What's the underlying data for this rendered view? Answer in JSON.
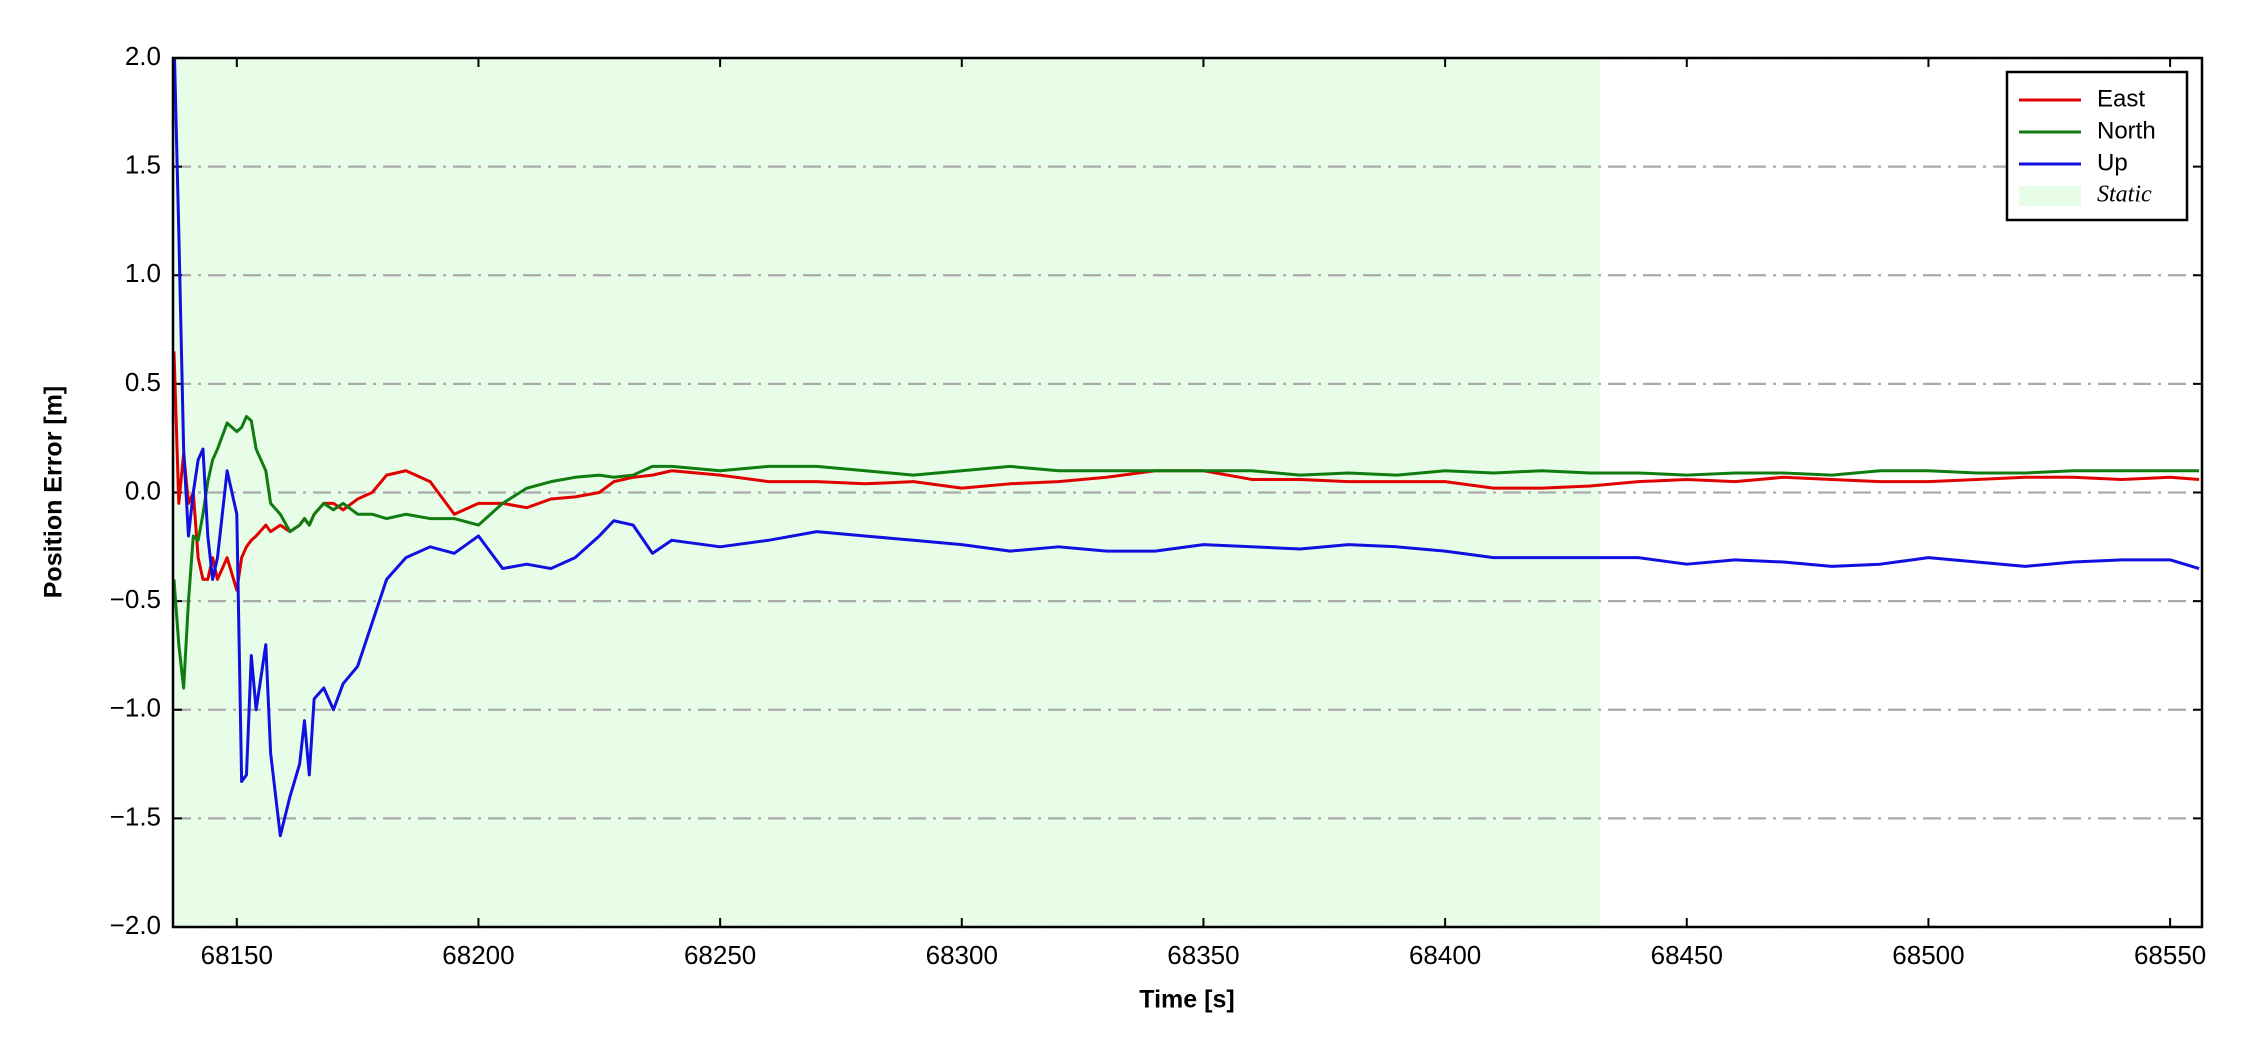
{
  "chart_data": {
    "type": "line",
    "xlabel": "Time [s]",
    "ylabel": "Position Error [m]",
    "xlim": [
      68136.8,
      68556.6
    ],
    "ylim": [
      -2.0,
      2.0
    ],
    "xticks": [
      68150,
      68200,
      68250,
      68300,
      68350,
      68400,
      68450,
      68500,
      68550
    ],
    "yticks": [
      {
        "value": -2.0,
        "label": "−2.0"
      },
      {
        "value": -1.5,
        "label": "−1.5"
      },
      {
        "value": -1.0,
        "label": "−1.0"
      },
      {
        "value": -0.5,
        "label": "−0.5"
      },
      {
        "value": 0.0,
        "label": "0.0"
      },
      {
        "value": 0.5,
        "label": "0.5"
      },
      {
        "value": 1.0,
        "label": "1.0"
      },
      {
        "value": 1.5,
        "label": "1.5"
      },
      {
        "value": 2.0,
        "label": "2.0"
      }
    ],
    "grid": true,
    "legend": "upper right",
    "shaded_region": {
      "name": "Static",
      "x": [
        68136.8,
        68432
      ],
      "color": "#e8fde8"
    },
    "x": [
      68137,
      68138,
      68139,
      68140,
      68141,
      68142,
      68143,
      68144,
      68145,
      68146,
      68148,
      68150,
      68151,
      68152,
      68153,
      68154,
      68156,
      68157,
      68159,
      68161,
      68163,
      68164,
      68165,
      68166,
      68168,
      68170,
      68172,
      68175,
      68178,
      68181,
      68185,
      68190,
      68195,
      68200,
      68205,
      68210,
      68215,
      68220,
      68225,
      68228,
      68232,
      68236,
      68240,
      68250,
      68260,
      68270,
      68280,
      68290,
      68300,
      68310,
      68320,
      68330,
      68340,
      68350,
      68360,
      68370,
      68380,
      68390,
      68400,
      68410,
      68420,
      68430,
      68440,
      68450,
      68460,
      68470,
      68480,
      68490,
      68500,
      68510,
      68520,
      68530,
      68540,
      68550,
      68556
    ],
    "series": [
      {
        "name": "East",
        "color": "#e00000",
        "values": [
          0.65,
          -0.05,
          0.18,
          -0.05,
          0.0,
          -0.3,
          -0.4,
          -0.4,
          -0.3,
          -0.4,
          -0.3,
          -0.45,
          -0.3,
          -0.25,
          -0.22,
          -0.2,
          -0.15,
          -0.18,
          -0.15,
          -0.18,
          -0.15,
          -0.12,
          -0.15,
          -0.1,
          -0.05,
          -0.05,
          -0.08,
          -0.03,
          0.0,
          0.08,
          0.1,
          0.05,
          -0.1,
          -0.05,
          -0.05,
          -0.07,
          -0.03,
          -0.02,
          0.0,
          0.05,
          0.07,
          0.08,
          0.1,
          0.08,
          0.05,
          0.05,
          0.04,
          0.05,
          0.02,
          0.04,
          0.05,
          0.07,
          0.1,
          0.1,
          0.06,
          0.06,
          0.05,
          0.05,
          0.05,
          0.02,
          0.02,
          0.03,
          0.05,
          0.06,
          0.05,
          0.07,
          0.06,
          0.05,
          0.05,
          0.06,
          0.07,
          0.07,
          0.06,
          0.07,
          0.06
        ]
      },
      {
        "name": "North",
        "color": "#107c10",
        "values": [
          -0.4,
          -0.7,
          -0.9,
          -0.5,
          -0.2,
          -0.22,
          -0.1,
          0.05,
          0.15,
          0.2,
          0.32,
          0.28,
          0.3,
          0.35,
          0.33,
          0.2,
          0.1,
          -0.05,
          -0.1,
          -0.18,
          -0.15,
          -0.12,
          -0.15,
          -0.1,
          -0.05,
          -0.08,
          -0.05,
          -0.1,
          -0.1,
          -0.12,
          -0.1,
          -0.12,
          -0.12,
          -0.15,
          -0.05,
          0.02,
          0.05,
          0.07,
          0.08,
          0.07,
          0.08,
          0.12,
          0.12,
          0.1,
          0.12,
          0.12,
          0.1,
          0.08,
          0.1,
          0.12,
          0.1,
          0.1,
          0.1,
          0.1,
          0.1,
          0.08,
          0.09,
          0.08,
          0.1,
          0.09,
          0.1,
          0.09,
          0.09,
          0.08,
          0.09,
          0.09,
          0.08,
          0.1,
          0.1,
          0.09,
          0.09,
          0.1,
          0.1,
          0.1,
          0.1
        ]
      },
      {
        "name": "Up",
        "color": "#1010e0",
        "values": [
          2.1,
          1.2,
          0.2,
          -0.2,
          0.0,
          0.15,
          0.2,
          -0.2,
          -0.4,
          -0.3,
          0.1,
          -0.1,
          -1.33,
          -1.3,
          -0.75,
          -1.0,
          -0.7,
          -1.2,
          -1.58,
          -1.4,
          -1.25,
          -1.05,
          -1.3,
          -0.95,
          -0.9,
          -1.0,
          -0.88,
          -0.8,
          -0.6,
          -0.4,
          -0.3,
          -0.25,
          -0.28,
          -0.2,
          -0.35,
          -0.33,
          -0.35,
          -0.3,
          -0.2,
          -0.13,
          -0.15,
          -0.28,
          -0.22,
          -0.25,
          -0.22,
          -0.18,
          -0.2,
          -0.22,
          -0.24,
          -0.27,
          -0.25,
          -0.27,
          -0.27,
          -0.24,
          -0.25,
          -0.26,
          -0.24,
          -0.25,
          -0.27,
          -0.3,
          -0.3,
          -0.3,
          -0.3,
          -0.33,
          -0.31,
          -0.32,
          -0.34,
          -0.33,
          -0.3,
          -0.32,
          -0.34,
          -0.32,
          -0.31,
          -0.31,
          -0.35
        ]
      }
    ]
  }
}
